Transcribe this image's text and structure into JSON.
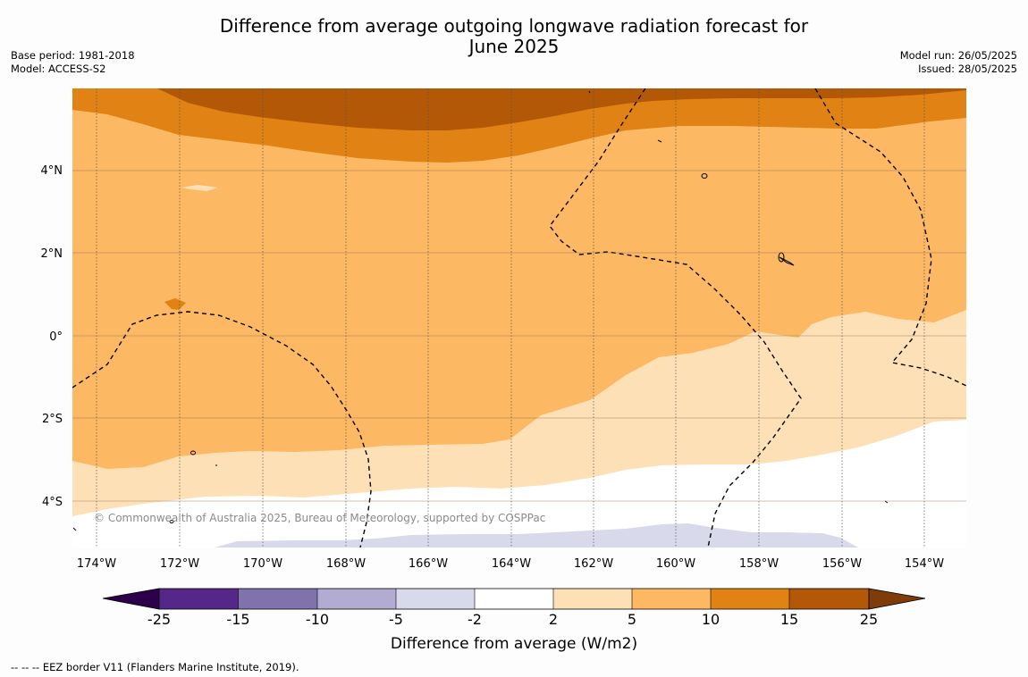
{
  "title": {
    "line1": "Difference from average outgoing longwave radiation forecast for",
    "line2": "June 2025"
  },
  "meta_left": {
    "base_period": "Base period: 1981-2018",
    "model": "Model: ACCESS-S2"
  },
  "meta_right": {
    "model_run": "Model run: 26/05/2025",
    "issued": "Issued: 28/05/2025"
  },
  "map": {
    "lon_range": [
      -174.6,
      -152.9
    ],
    "lat_range": [
      -5.0,
      5.95
    ],
    "lon_ticks": [
      "174°W",
      "172°W",
      "170°W",
      "168°W",
      "166°W",
      "164°W",
      "162°W",
      "160°W",
      "158°W",
      "156°W",
      "154°W"
    ],
    "lat_ticks": [
      "4°N",
      "2°N",
      "0°",
      "2°S",
      "4°S"
    ],
    "copyright": "© Commonwealth of Australia 2025, Bureau of Meteorology, supported by COSPPac",
    "border_style": "dashed",
    "colors": {
      "15_25": "#b35806",
      "10_15": "#e08214",
      "5_10": "#fdb863",
      "2_5": "#fee0b6",
      "-2_2": "#ffffff",
      "-5_-2": "#d8daeb"
    }
  },
  "colorbar": {
    "ticks": [
      "-25",
      "-15",
      "-10",
      "-5",
      "-2",
      "2",
      "5",
      "10",
      "15",
      "25"
    ],
    "colors": [
      "#2d004b",
      "#542788",
      "#8073ac",
      "#b2abd2",
      "#d8daeb",
      "#ffffff",
      "#fee0b6",
      "#fdb863",
      "#e08214",
      "#b35806",
      "#7f3b08"
    ],
    "label": "Difference from average (W/m2)"
  },
  "footnote": "--  --  -- EEZ border V11 (Flanders Marine Institute, 2019)."
}
